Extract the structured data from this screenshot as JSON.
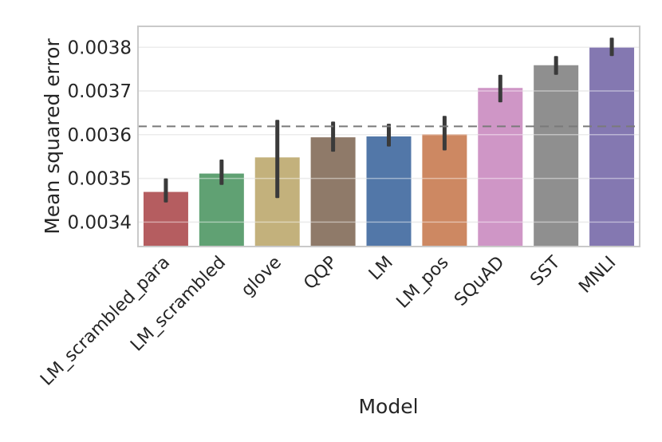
{
  "figure": {
    "background": "#ffffff"
  },
  "chart_data": {
    "type": "bar",
    "title": "",
    "xlabel": "Model",
    "ylabel": "Mean squared error",
    "categories": [
      "LM_scrambled_para",
      "LM_scrambled",
      "glove",
      "QQP",
      "LM",
      "LM_pos",
      "SQuAD",
      "SST",
      "MNLI"
    ],
    "values": [
      0.003469,
      0.003511,
      0.003548,
      0.003594,
      0.003596,
      0.003601,
      0.003707,
      0.003759,
      0.0038
    ],
    "error_bars": {
      "low": [
        0.003445,
        0.003485,
        0.003455,
        0.003561,
        0.003573,
        0.003564,
        0.003674,
        0.003737,
        0.00378
      ],
      "high": [
        0.0035,
        0.003543,
        0.003634,
        0.00363,
        0.003625,
        0.003643,
        0.003737,
        0.00378,
        0.003822
      ]
    },
    "bar_colors": [
      "#b55d60",
      "#60a173",
      "#c3b17c",
      "#8f7a69",
      "#5277a8",
      "#cd8862",
      "#cf96c6",
      "#8f8f8f",
      "#8478b1"
    ],
    "ylim": [
      0.003344,
      0.003848
    ],
    "yticks": [
      0.0034,
      0.0035,
      0.0036,
      0.0037,
      0.0038
    ],
    "ytick_labels": [
      "0.0034",
      "0.0035",
      "0.0036",
      "0.0037",
      "0.0038"
    ],
    "reference_line": {
      "value": 0.003619,
      "style": "dashed",
      "color": "#7a7a7a"
    },
    "grid": "horizontal",
    "legend": "none",
    "styles": {
      "error_bar_color": "#3a3a3a",
      "grid_color": "#dcdcdc",
      "grid_overlay_on_bars": "rgba(255,255,255,0.45)",
      "border_color": "#c9c9c9",
      "text_color": "#262626",
      "plot_background": "#ffffff"
    }
  }
}
